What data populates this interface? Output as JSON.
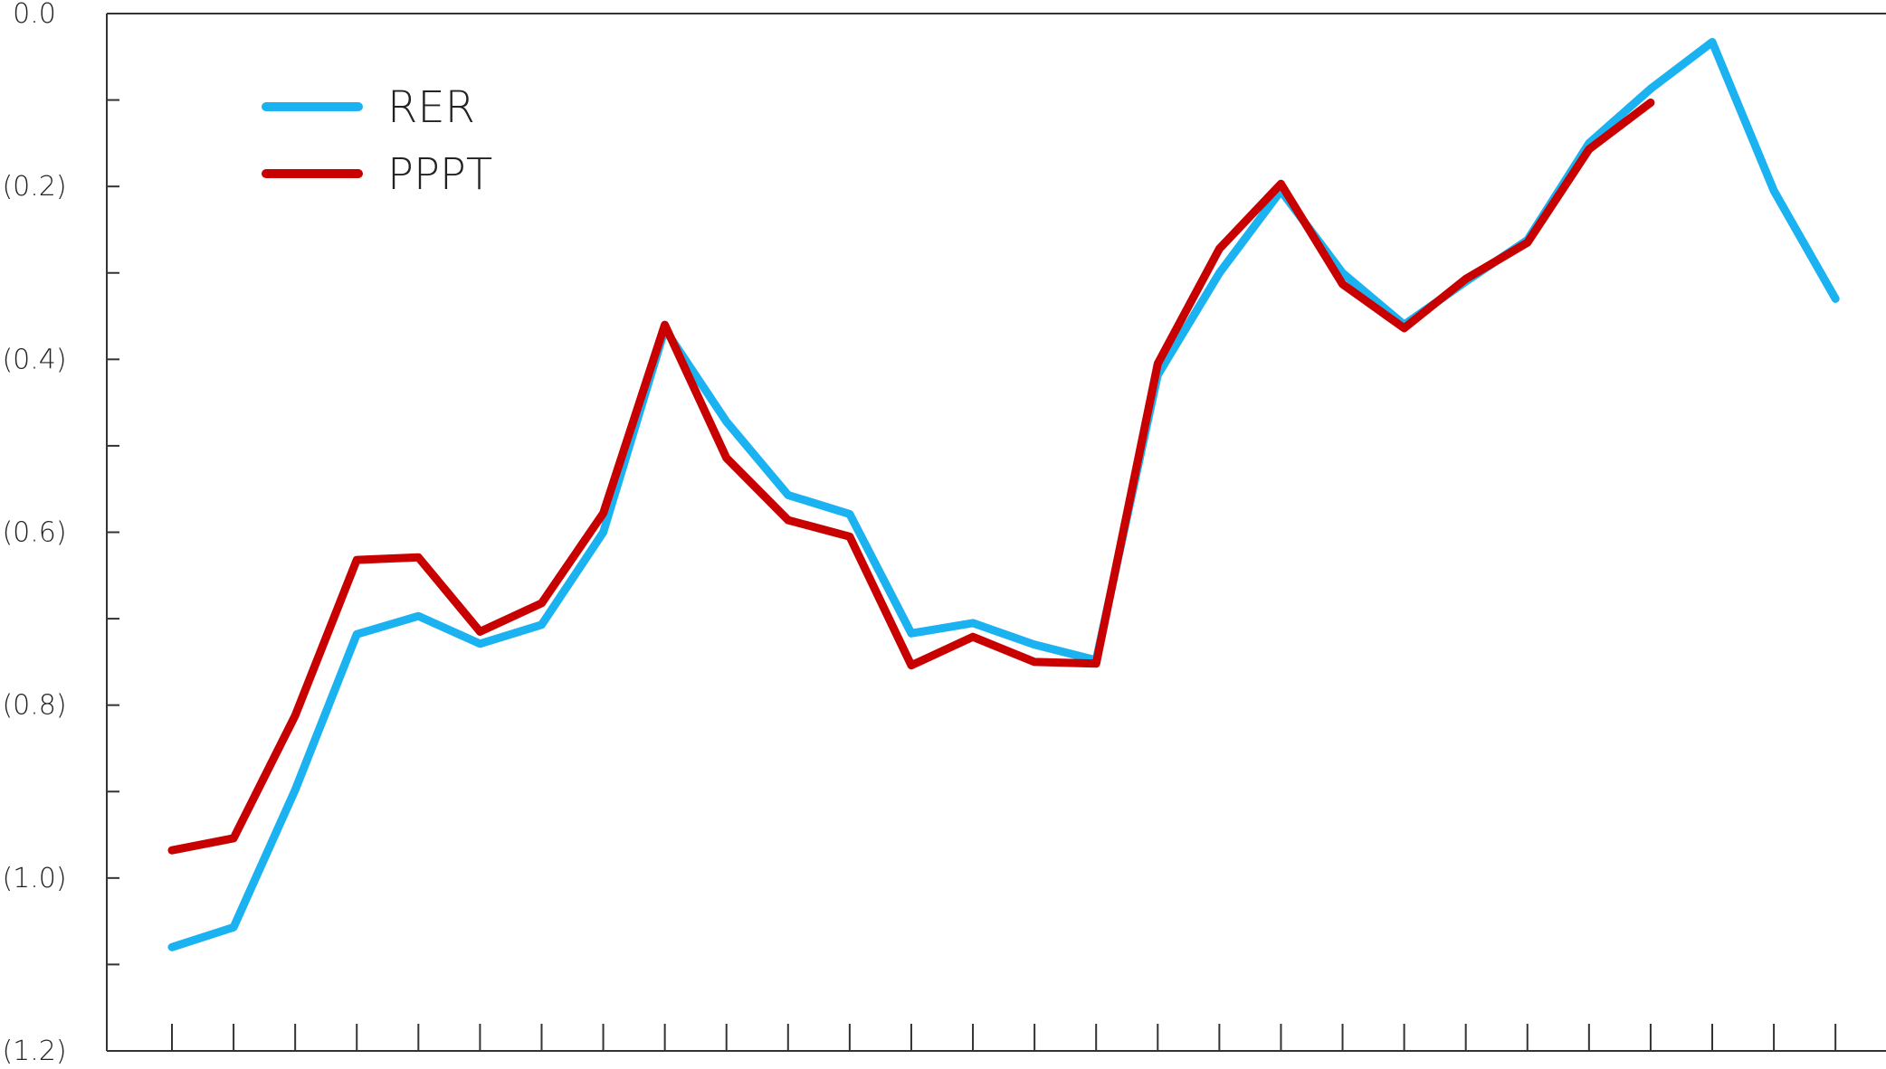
{
  "chart_data": {
    "type": "line",
    "title": "",
    "xlabel": "",
    "ylabel": "",
    "ylim": [
      -1.2,
      0.0
    ],
    "y_ticks": [
      0.0,
      -0.2,
      -0.4,
      -0.6,
      -0.8,
      -1.0,
      -1.2
    ],
    "y_tick_labels": [
      "0.0",
      "(0.2)",
      "(0.4)",
      "(0.6)",
      "(0.8)",
      "(1.0)",
      "(1.2)"
    ],
    "y_minor_ticks": [
      -0.1,
      -0.3,
      -0.5,
      -0.7,
      -0.9,
      -1.1
    ],
    "x_count": 28,
    "grid": false,
    "legend_position": "top-left",
    "series": [
      {
        "name": "RER",
        "color": "#1ab2f0",
        "values": [
          -1.08,
          -1.057,
          -0.898,
          -0.718,
          -0.697,
          -0.729,
          -0.707,
          -0.6,
          -0.365,
          -0.472,
          -0.557,
          -0.579,
          -0.717,
          -0.705,
          -0.73,
          -0.748,
          -0.418,
          -0.3,
          -0.205,
          -0.3,
          -0.36,
          -0.31,
          -0.262,
          -0.15,
          -0.087,
          -0.033,
          -0.205,
          -0.33
        ]
      },
      {
        "name": "PPPT",
        "color": "#c80000",
        "values": [
          -0.968,
          -0.954,
          -0.812,
          -0.632,
          -0.629,
          -0.715,
          -0.682,
          -0.578,
          -0.36,
          -0.514,
          -0.586,
          -0.605,
          -0.754,
          -0.721,
          -0.75,
          -0.752,
          -0.405,
          -0.272,
          -0.197,
          -0.313,
          -0.364,
          -0.307,
          -0.265,
          -0.157,
          -0.103,
          null,
          null,
          null
        ]
      }
    ]
  }
}
